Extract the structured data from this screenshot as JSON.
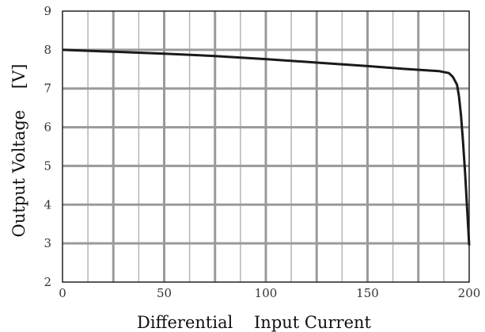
{
  "chart_data": {
    "type": "line",
    "title": "",
    "xlabel": "Differential    Input Current",
    "ylabel": "Output Voltage    [V]",
    "xlim": [
      0,
      200
    ],
    "ylim": [
      2,
      9
    ],
    "x_ticks": [
      0,
      50,
      100,
      150,
      200
    ],
    "y_ticks": [
      2,
      3,
      4,
      5,
      6,
      7,
      8,
      9
    ],
    "grid": true,
    "legend": "none",
    "colors": {
      "line": "#1a1a1a",
      "grid": "#9a9a9a",
      "frame": "#222222"
    },
    "series": [
      {
        "x": [
          0,
          25,
          50,
          75,
          100,
          125,
          150,
          170,
          185,
          190,
          192,
          194,
          195,
          196,
          197,
          198,
          199,
          200
        ],
        "y": [
          8.0,
          7.95,
          7.9,
          7.84,
          7.76,
          7.67,
          7.58,
          7.5,
          7.45,
          7.4,
          7.3,
          7.1,
          6.8,
          6.3,
          5.6,
          4.8,
          3.9,
          2.95
        ]
      }
    ]
  }
}
